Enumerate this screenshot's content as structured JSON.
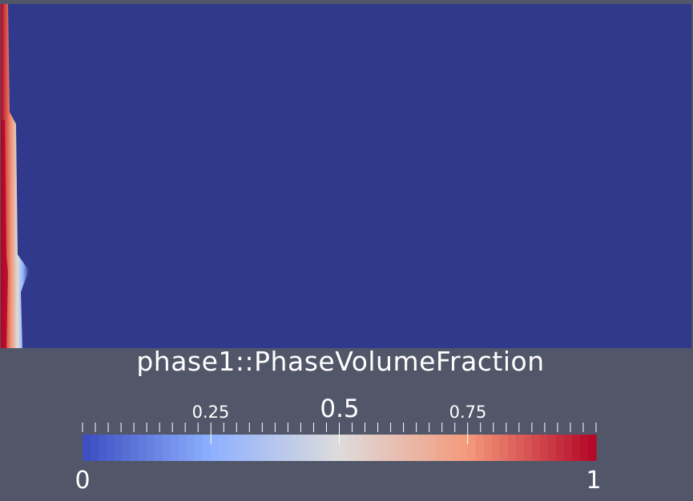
{
  "colorbar": {
    "title": "phase1::PhaseVolumeFraction",
    "min": 0,
    "max": 1,
    "min_label": "0",
    "max_label": "1",
    "tick_labels": [
      {
        "value": 0.25,
        "text": "0.25"
      },
      {
        "value": 0.5,
        "text": "0.5"
      },
      {
        "value": 0.75,
        "text": "0.75"
      }
    ],
    "minor_tick_count": 41,
    "colormap": [
      "#3b4cc0",
      "#8db0fe",
      "#dddcdc",
      "#f49a7b",
      "#b40426"
    ]
  },
  "colors": {
    "background": "#525669",
    "domain_fill": "#30398c"
  }
}
